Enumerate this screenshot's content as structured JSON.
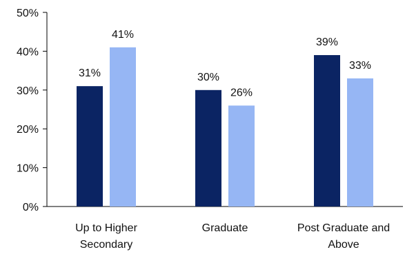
{
  "chart_data": {
    "type": "bar",
    "categories": [
      [
        "Up to Higher",
        "Secondary"
      ],
      [
        "Graduate"
      ],
      [
        "Post Graduate and",
        "Above"
      ]
    ],
    "series": [
      {
        "values": [
          31,
          30,
          39
        ],
        "labels": [
          "31%",
          "30%",
          "39%"
        ],
        "color": "#0b2463"
      },
      {
        "values": [
          41,
          26,
          33
        ],
        "labels": [
          "41%",
          "26%",
          "33%"
        ],
        "color": "#96b6f4"
      }
    ],
    "ylim": [
      0,
      50
    ],
    "yticks": [
      0,
      10,
      20,
      30,
      40,
      50
    ],
    "ytick_labels": [
      "0%",
      "10%",
      "20%",
      "30%",
      "40%",
      "50%"
    ],
    "grid": false,
    "legend": "none"
  }
}
